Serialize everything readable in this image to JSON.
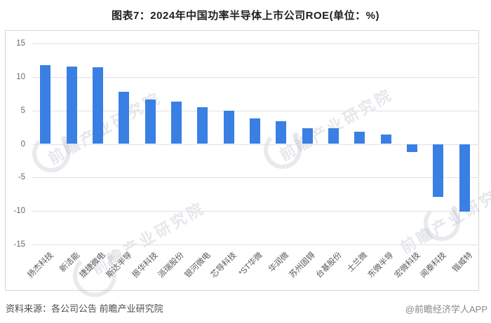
{
  "title": "图表7：2024年中国功率半导体上市公司ROE(单位：%)",
  "footer": {
    "source": "资料来源：各公司公告 前瞻产业研究院",
    "credit": "@前瞻经济学人APP"
  },
  "watermark": {
    "text": "前瞻产业研究院"
  },
  "colors": {
    "bar": "#3a7fe3",
    "grid": "#e2e2e6",
    "frame_border": "#d6d6d6",
    "axis_text": "#666666",
    "title_text": "#1f1f1f"
  },
  "chart_data": {
    "type": "bar",
    "title": "图表7：2024年中国功率半导体上市公司ROE(单位：%)",
    "categories": [
      "扬杰科技",
      "新洁能",
      "捷捷微电",
      "斯达半导",
      "振华科技",
      "派瑞股份",
      "银河微电",
      "芯导科技",
      "*ST华微",
      "华润微",
      "苏州固锝",
      "台基股份",
      "士兰微",
      "东微半导",
      "宏微科技",
      "闻泰科技",
      "锴威特"
    ],
    "values": [
      11.8,
      11.5,
      11.4,
      7.8,
      6.6,
      6.3,
      5.5,
      5.0,
      3.8,
      3.4,
      2.4,
      2.3,
      1.8,
      1.4,
      -1.2,
      -7.9,
      -10.1
    ],
    "xlabel": "",
    "ylabel": "",
    "unit": "%",
    "ylim": [
      -15,
      15
    ],
    "yticks": [
      15,
      10,
      5,
      0,
      -5,
      -10,
      -15
    ],
    "grid": true,
    "legend": false
  }
}
